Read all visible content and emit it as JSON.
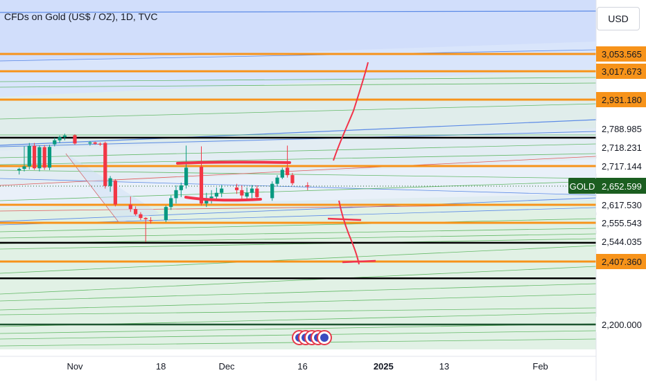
{
  "header": {
    "symbol_title": "CFDs on Gold (US$ / OZ), 1D, TVC",
    "currency_button": "USD"
  },
  "instrument": {
    "ticker_tag": "GOLD",
    "last_price": "2,652.599"
  },
  "colors": {
    "up": "#089981",
    "down": "#f23645",
    "orange_level": "#f7931a",
    "black_level": "#000000",
    "blue_zone": "#cfdcfb",
    "green_zone": "#dcefe1",
    "hand_drawn": "#f2334a",
    "ticker_tag": "#1b5e20"
  },
  "price_axis": {
    "labels": [
      {
        "text": "3,053.565",
        "value": 3053.565,
        "style": "orange"
      },
      {
        "text": "3,017.673",
        "value": 3017.673,
        "style": "orange"
      },
      {
        "text": "2,931.180",
        "value": 2931.18,
        "style": "orange"
      },
      {
        "text": "2,788.985",
        "value": 2788.985,
        "style": "plain"
      },
      {
        "text": "2,718.231",
        "value": 2718.231,
        "style": "plain"
      },
      {
        "text": "2,717.144",
        "value": 2717.144,
        "style": "plain"
      },
      {
        "text": "2,617.530",
        "value": 2617.53,
        "style": "plain"
      },
      {
        "text": "2,555.543",
        "value": 2555.543,
        "style": "plain"
      },
      {
        "text": "2,544.035",
        "value": 2544.035,
        "style": "plain"
      },
      {
        "text": "2,407.360",
        "value": 2407.36,
        "style": "orange"
      },
      {
        "text": "2,200.000",
        "value": 2200.0,
        "style": "plain"
      }
    ]
  },
  "time_axis": {
    "labels": [
      {
        "text": "Nov",
        "day": 0,
        "bold": false
      },
      {
        "text": "18",
        "day": 17,
        "bold": false
      },
      {
        "text": "Dec",
        "day": 30,
        "bold": false
      },
      {
        "text": "16",
        "day": 45,
        "bold": false
      },
      {
        "text": "2025",
        "day": 61,
        "bold": true
      },
      {
        "text": "13",
        "day": 73,
        "bold": false
      },
      {
        "text": "Feb",
        "day": 92,
        "bold": false
      }
    ]
  },
  "chart_data": {
    "type": "candlestick",
    "title": "CFDs on Gold (US$ / OZ), 1D, TVC",
    "last_price": 2652.599,
    "x_range_days_from_nov1": [
      -11,
      98
    ],
    "ylim": [
      2120,
      3250
    ],
    "candles": [
      {
        "day": -11,
        "o": 2703,
        "h": 2712,
        "l": 2690,
        "c": 2708
      },
      {
        "day": -10,
        "o": 2708,
        "h": 2722,
        "l": 2700,
        "c": 2716
      },
      {
        "day": -9,
        "o": 2716,
        "h": 2735,
        "l": 2706,
        "c": 2724
      },
      {
        "day": -8,
        "o": 2724,
        "h": 2735,
        "l": 2705,
        "c": 2710
      },
      {
        "day": -7,
        "o": 2710,
        "h": 2726,
        "l": 2700,
        "c": 2719
      },
      {
        "day": -6,
        "o": 2719,
        "h": 2727,
        "l": 2705,
        "c": 2712
      },
      {
        "day": -5,
        "o": 2712,
        "h": 2728,
        "l": 2704,
        "c": 2720
      },
      {
        "day": -4,
        "o": 2730,
        "h": 2755,
        "l": 2722,
        "c": 2745
      },
      {
        "day": -3,
        "o": 2745,
        "h": 2763,
        "l": 2735,
        "c": 2757
      },
      {
        "day": -2,
        "o": 2757,
        "h": 2770,
        "l": 2745,
        "c": 2763
      },
      {
        "day": 0,
        "o": 2764,
        "h": 2768,
        "l": 2728,
        "c": 2733
      },
      {
        "day": 3,
        "o": 2733,
        "h": 2742,
        "l": 2725,
        "c": 2737
      },
      {
        "day": 4,
        "o": 2737,
        "h": 2740,
        "l": 2728,
        "c": 2732
      },
      {
        "day": 5,
        "o": 2732,
        "h": 2737,
        "l": 2724,
        "c": 2729
      },
      {
        "day": 6,
        "o": 2735,
        "h": 2740,
        "l": 2648,
        "c": 2653
      },
      {
        "day": 7,
        "o": 2653,
        "h": 2685,
        "l": 2642,
        "c": 2678
      },
      {
        "day": 8,
        "o": 2670,
        "h": 2675,
        "l": 2612,
        "c": 2618
      },
      {
        "day": 11,
        "o": 2618,
        "h": 2633,
        "l": 2593,
        "c": 2603
      },
      {
        "day": 12,
        "o": 2603,
        "h": 2612,
        "l": 2580,
        "c": 2585
      },
      {
        "day": 13,
        "o": 2585,
        "h": 2592,
        "l": 2565,
        "c": 2572
      },
      {
        "day": 14,
        "o": 2572,
        "h": 2575,
        "l": 2540,
        "c": 2568
      },
      {
        "day": 15,
        "o": 2565,
        "h": 2575,
        "l": 2555,
        "c": 2562
      },
      {
        "day": 18,
        "o": 2565,
        "h": 2615,
        "l": 2558,
        "c": 2610
      },
      {
        "day": 19,
        "o": 2610,
        "h": 2635,
        "l": 2600,
        "c": 2630
      },
      {
        "day": 20,
        "o": 2630,
        "h": 2655,
        "l": 2620,
        "c": 2645
      },
      {
        "day": 21,
        "o": 2645,
        "h": 2664,
        "l": 2632,
        "c": 2655
      },
      {
        "day": 22,
        "o": 2655,
        "h": 2725,
        "l": 2648,
        "c": 2712
      },
      {
        "day": 25,
        "o": 2715,
        "h": 2722,
        "l": 2615,
        "c": 2620
      },
      {
        "day": 26,
        "o": 2620,
        "h": 2640,
        "l": 2610,
        "c": 2630
      },
      {
        "day": 27,
        "o": 2630,
        "h": 2645,
        "l": 2620,
        "c": 2633
      },
      {
        "day": 28,
        "o": 2633,
        "h": 2650,
        "l": 2625,
        "c": 2640
      },
      {
        "day": 29,
        "o": 2640,
        "h": 2656,
        "l": 2632,
        "c": 2648
      },
      {
        "day": 32,
        "o": 2650,
        "h": 2660,
        "l": 2638,
        "c": 2645
      },
      {
        "day": 33,
        "o": 2645,
        "h": 2655,
        "l": 2628,
        "c": 2635
      },
      {
        "day": 34,
        "o": 2633,
        "h": 2650,
        "l": 2625,
        "c": 2640
      },
      {
        "day": 35,
        "o": 2640,
        "h": 2656,
        "l": 2630,
        "c": 2648
      },
      {
        "day": 36,
        "o": 2648,
        "h": 2655,
        "l": 2628,
        "c": 2632
      },
      {
        "day": 39,
        "o": 2630,
        "h": 2668,
        "l": 2625,
        "c": 2660
      },
      {
        "day": 40,
        "o": 2660,
        "h": 2688,
        "l": 2652,
        "c": 2680
      },
      {
        "day": 41,
        "o": 2680,
        "h": 2712,
        "l": 2675,
        "c": 2705
      },
      {
        "day": 42,
        "o": 2712,
        "h": 2725,
        "l": 2680,
        "c": 2688
      },
      {
        "day": 43,
        "o": 2688,
        "h": 2695,
        "l": 2655,
        "c": 2662
      },
      {
        "day": 46,
        "o": 2655,
        "h": 2665,
        "l": 2645,
        "c": 2652
      }
    ],
    "horizontal_levels": [
      {
        "price": 3053.565,
        "color": "orange"
      },
      {
        "price": 3017.673,
        "color": "orange"
      },
      {
        "price": 2931.18,
        "color": "orange"
      },
      {
        "price": 2755,
        "color": "black"
      },
      {
        "price": 2717.144,
        "color": "orange"
      },
      {
        "price": 2617.53,
        "color": "orange"
      },
      {
        "price": 2555.543,
        "color": "orange"
      },
      {
        "price": 2535,
        "color": "black"
      },
      {
        "price": 2407.36,
        "color": "orange"
      },
      {
        "price": 2352,
        "color": "black"
      },
      {
        "price": 2200.0,
        "color": "darkgreen"
      }
    ]
  }
}
